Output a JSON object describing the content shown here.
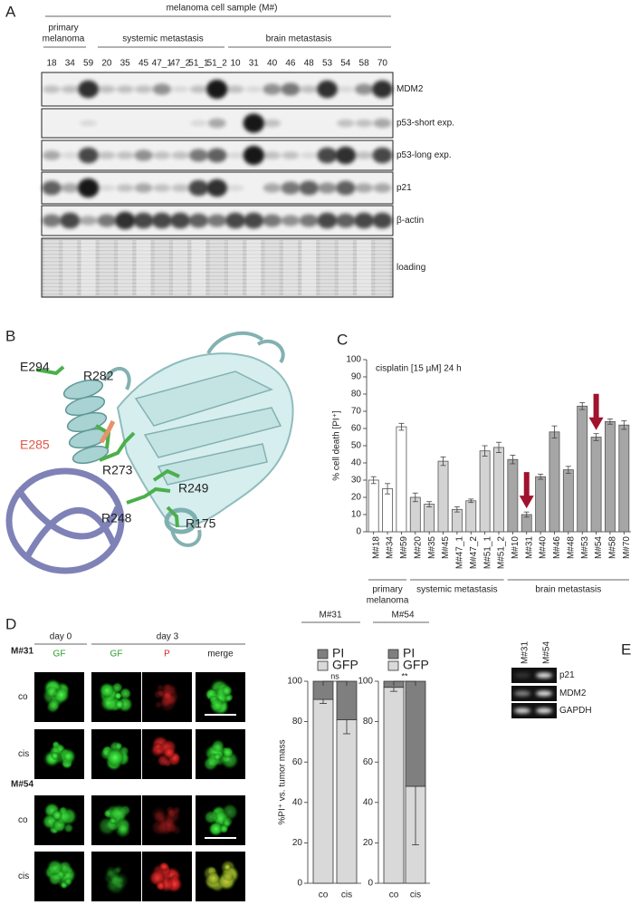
{
  "panel_labels": [
    "A",
    "B",
    "C",
    "D",
    "E"
  ],
  "panel_a": {
    "title": "melanoma cell sample (M#)",
    "groups": [
      {
        "lines": [
          "primary",
          "melanoma"
        ]
      },
      {
        "lines": [
          "systemic metastasis"
        ]
      },
      {
        "lines": [
          "brain metastasis"
        ]
      }
    ],
    "lanes": [
      "18",
      "34",
      "59",
      "20",
      "35",
      "45",
      "47_1",
      "47_2",
      "51_1",
      "51_2",
      "10",
      "31",
      "40",
      "46",
      "48",
      "53",
      "54",
      "58",
      "70"
    ],
    "rows": [
      "MDM2",
      "p53-short exp.",
      "p53-long exp.",
      "p21",
      "β-actin",
      "loading"
    ]
  },
  "panel_b": {
    "labels": [
      "E294",
      "R282",
      "E285",
      "R273",
      "R249",
      "R248",
      "R175"
    ]
  },
  "panel_d": {
    "headers": [
      "day 0",
      "day 3"
    ],
    "channels": [
      "GF",
      "GF",
      "P",
      "merge"
    ],
    "samples": [
      {
        "name": "M#31",
        "conditions": [
          "co",
          "cis"
        ]
      },
      {
        "name": "M#54",
        "conditions": [
          "co",
          "cis"
        ]
      }
    ]
  },
  "panel_e": {
    "samples": [
      "M#31",
      "M#54"
    ],
    "genes": [
      "p21",
      "MDM2",
      "GAPDH"
    ]
  },
  "chart_data": [
    {
      "type": "bar",
      "annotation": "cisplatin [15 µM] 24 h",
      "y_label": "% cell death [PI⁺]",
      "categories": [
        "M#18",
        "M#34",
        "M#59",
        "M#20",
        "M#35",
        "M#45",
        "M#47_1",
        "M#47_2",
        "M#51_1",
        "M#51_2",
        "M#10",
        "M#31",
        "M#40",
        "M#46",
        "M#48",
        "M#53",
        "M#54",
        "M#58",
        "M#70"
      ],
      "values": [
        30,
        25,
        61,
        20,
        16,
        41,
        13,
        18,
        47,
        49,
        42,
        10,
        32,
        58,
        36,
        73,
        55,
        64,
        62
      ],
      "errors": [
        2,
        3,
        2,
        2.5,
        1.5,
        2.5,
        1.5,
        1,
        3,
        3,
        2.5,
        1.5,
        1.5,
        3.5,
        2,
        2,
        2,
        1.5,
        2.5
      ],
      "colors": [
        "#ffffff",
        "#ffffff",
        "#ffffff",
        "#d3d3d3",
        "#d3d3d3",
        "#d3d3d3",
        "#d3d3d3",
        "#d3d3d3",
        "#d3d3d3",
        "#d3d3d3",
        "#a6a6a6",
        "#a6a6a6",
        "#a6a6a6",
        "#a6a6a6",
        "#a6a6a6",
        "#a6a6a6",
        "#a6a6a6",
        "#a6a6a6",
        "#a6a6a6"
      ],
      "groups": [
        {
          "lines": [
            "primary",
            "melanoma"
          ]
        },
        {
          "lines": [
            "systemic metastasis"
          ]
        },
        {
          "lines": [
            "brain metastasis"
          ]
        }
      ],
      "ylim": [
        0,
        100
      ],
      "yticks": [
        0,
        10,
        20,
        30,
        40,
        50,
        60,
        70,
        80,
        90,
        100
      ]
    },
    {
      "type": "stacked_bar",
      "title": "M#31",
      "y_label": "%PI⁺ vs. tumor mass",
      "categories": [
        "co",
        "cis"
      ],
      "series": [
        {
          "name": "PI",
          "color": "#7f7f7f",
          "values": [
            9,
            19
          ]
        },
        {
          "name": "GFP",
          "color": "#d9d9d9",
          "values": [
            91,
            81
          ],
          "errors": [
            2,
            7
          ]
        }
      ],
      "annotation": "ns",
      "ylim": [
        0,
        100
      ],
      "yticks": [
        0,
        20,
        40,
        60,
        80,
        100
      ]
    },
    {
      "type": "stacked_bar",
      "title": "M#54",
      "categories": [
        "co",
        "cis"
      ],
      "series": [
        {
          "name": "PI",
          "color": "#7f7f7f",
          "values": [
            3,
            52
          ]
        },
        {
          "name": "GFP",
          "color": "#d9d9d9",
          "values": [
            97,
            48
          ],
          "errors": [
            2,
            29
          ]
        }
      ],
      "annotation": "**",
      "ylim": [
        0,
        100
      ],
      "yticks": [
        0,
        20,
        40,
        60,
        80,
        100
      ]
    }
  ]
}
